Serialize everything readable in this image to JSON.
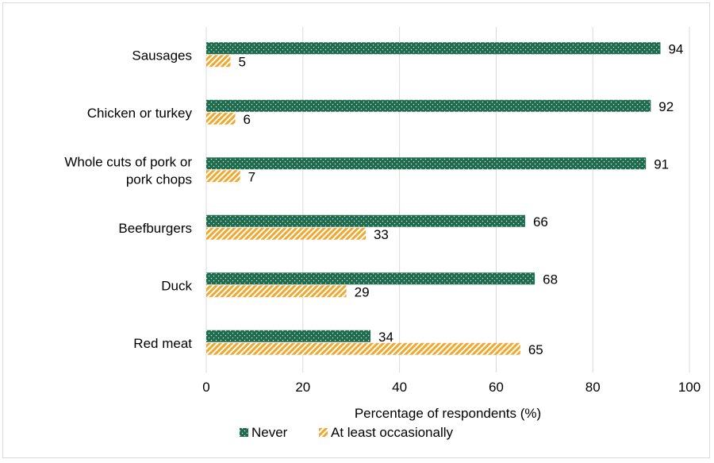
{
  "chart_data": {
    "type": "bar",
    "orientation": "horizontal",
    "categories": [
      [
        "Sausages"
      ],
      [
        "Chicken or turkey"
      ],
      [
        "Whole cuts of pork or",
        "pork chops"
      ],
      [
        "Beefburgers"
      ],
      [
        "Duck"
      ],
      [
        "Red meat"
      ]
    ],
    "series": [
      {
        "name": "Never",
        "color": "#1e6b4d",
        "pattern": "dots",
        "values": [
          94,
          92,
          91,
          66,
          68,
          34
        ]
      },
      {
        "name": "At least occasionally",
        "color": "#f0a830",
        "pattern": "hatch",
        "values": [
          5,
          6,
          7,
          33,
          29,
          65
        ]
      }
    ],
    "xlabel": "Percentage of respondents (%)",
    "ylabel": "",
    "xlim": [
      0,
      100
    ],
    "xticks": [
      0,
      20,
      40,
      60,
      80,
      100
    ],
    "grid": true,
    "legend": "bottom"
  }
}
